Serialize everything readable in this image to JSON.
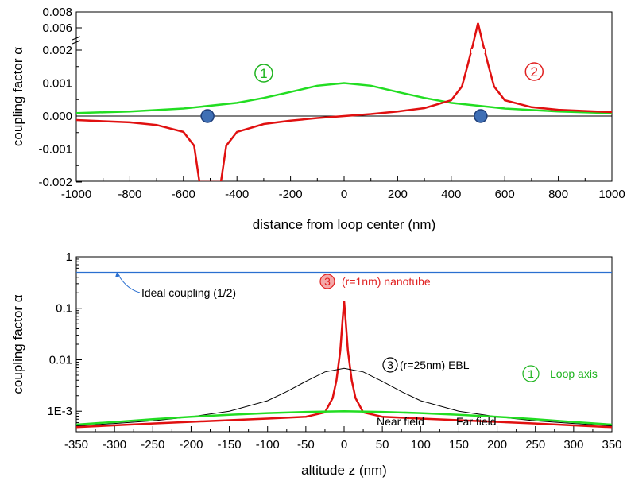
{
  "chart_data": [
    {
      "type": "line",
      "xlabel": "distance from loop center (nm)",
      "ylabel": "coupling factor α",
      "xlim": [
        -1000,
        1000
      ],
      "x_ticks": [
        -1000,
        -800,
        -600,
        -400,
        -200,
        0,
        200,
        400,
        600,
        800,
        1000
      ],
      "y_ticks": [
        "-0.002",
        "-0.001",
        "0.000",
        "0.001",
        "0.002",
        "0.006",
        "0.008"
      ],
      "y_tick_values": [
        -0.002,
        -0.001,
        0.0,
        0.001,
        0.002,
        0.006,
        0.008
      ],
      "grid": false,
      "series": [
        {
          "label": "1",
          "color": "#22dd22",
          "points": [
            [
              -1000,
              9e-05
            ],
            [
              -800,
              0.00014
            ],
            [
              -600,
              0.00023
            ],
            [
              -400,
              0.0004
            ],
            [
              -300,
              0.00055
            ],
            [
              -200,
              0.00073
            ],
            [
              -100,
              0.00092
            ],
            [
              0,
              0.001
            ],
            [
              100,
              0.00092
            ],
            [
              200,
              0.00073
            ],
            [
              300,
              0.00055
            ],
            [
              400,
              0.0004
            ],
            [
              600,
              0.00023
            ],
            [
              800,
              0.00014
            ],
            [
              1000,
              9e-05
            ]
          ]
        },
        {
          "label": "2",
          "color": "#e01010",
          "points": [
            [
              -1000,
              -0.00012
            ],
            [
              -800,
              -0.00019
            ],
            [
              -700,
              -0.00027
            ],
            [
              -600,
              -0.00048
            ],
            [
              -560,
              -0.0009
            ],
            [
              -540,
              -0.002
            ],
            [
              -460,
              -0.002
            ],
            [
              -440,
              -0.0009
            ],
            [
              -400,
              -0.00048
            ],
            [
              -300,
              -0.00024
            ],
            [
              -200,
              -0.00014
            ],
            [
              -100,
              -6e-05
            ],
            [
              0,
              0.0
            ],
            [
              100,
              6e-05
            ],
            [
              200,
              0.00014
            ],
            [
              300,
              0.00024
            ],
            [
              400,
              0.00048
            ],
            [
              440,
              0.0009
            ],
            [
              460,
              0.0015
            ],
            [
              480,
              0.0028
            ],
            [
              500,
              0.0066
            ],
            [
              520,
              0.0028
            ],
            [
              540,
              0.0015
            ],
            [
              560,
              0.0009
            ],
            [
              600,
              0.00048
            ],
            [
              700,
              0.00027
            ],
            [
              800,
              0.00019
            ],
            [
              1000,
              0.00012
            ]
          ]
        }
      ],
      "markers": [
        {
          "x": -510,
          "y": 0.0,
          "color": "#3f6fb5"
        },
        {
          "x": 510,
          "y": 0.0,
          "color": "#3f6fb5"
        }
      ]
    },
    {
      "type": "line",
      "yscale": "log",
      "xlabel": "altitude z (nm)",
      "ylabel": "coupling factor α",
      "xlim": [
        -350,
        350
      ],
      "ylim": [
        0.0004,
        1
      ],
      "x_ticks": [
        -350,
        -300,
        -250,
        -200,
        -150,
        -100,
        -50,
        0,
        50,
        100,
        150,
        200,
        250,
        300,
        350
      ],
      "y_ticks": [
        "1E-3",
        "0.01",
        "0.1",
        "1"
      ],
      "y_tick_values": [
        0.001,
        0.01,
        0.1,
        1
      ],
      "grid": false,
      "series": [
        {
          "color": "#2a6fd0",
          "points": [
            [
              -350,
              0.5
            ],
            [
              350,
              0.5
            ]
          ]
        },
        {
          "color": "#e01010",
          "points": [
            [
              -350,
              0.00049
            ],
            [
              -250,
              0.00058
            ],
            [
              -150,
              0.00067
            ],
            [
              -100,
              0.00072
            ],
            [
              -50,
              0.00078
            ],
            [
              -25,
              0.00095
            ],
            [
              -15,
              0.0018
            ],
            [
              -10,
              0.004
            ],
            [
              -5,
              0.015
            ],
            [
              -2,
              0.06
            ],
            [
              0,
              0.14
            ],
            [
              2,
              0.06
            ],
            [
              5,
              0.015
            ],
            [
              10,
              0.004
            ],
            [
              15,
              0.0018
            ],
            [
              25,
              0.00095
            ],
            [
              50,
              0.00078
            ],
            [
              100,
              0.00072
            ],
            [
              150,
              0.00067
            ],
            [
              250,
              0.00058
            ],
            [
              350,
              0.00049
            ]
          ]
        },
        {
          "color": "#000000",
          "points": [
            [
              -350,
              0.00052
            ],
            [
              -300,
              0.00058
            ],
            [
              -250,
              0.00065
            ],
            [
              -200,
              0.00078
            ],
            [
              -150,
              0.001
            ],
            [
              -100,
              0.0016
            ],
            [
              -75,
              0.0024
            ],
            [
              -50,
              0.0038
            ],
            [
              -25,
              0.0058
            ],
            [
              0,
              0.0068
            ],
            [
              25,
              0.0058
            ],
            [
              50,
              0.0038
            ],
            [
              75,
              0.0024
            ],
            [
              100,
              0.0016
            ],
            [
              150,
              0.001
            ],
            [
              200,
              0.00078
            ],
            [
              250,
              0.00065
            ],
            [
              300,
              0.00058
            ],
            [
              350,
              0.00052
            ]
          ]
        },
        {
          "color": "#22dd22",
          "points": [
            [
              -350,
              0.00055
            ],
            [
              -300,
              0.00062
            ],
            [
              -250,
              0.0007
            ],
            [
              -200,
              0.00078
            ],
            [
              -150,
              0.00085
            ],
            [
              -100,
              0.00092
            ],
            [
              -50,
              0.00097
            ],
            [
              0,
              0.001
            ],
            [
              50,
              0.00097
            ],
            [
              100,
              0.00092
            ],
            [
              150,
              0.00085
            ],
            [
              200,
              0.00078
            ],
            [
              250,
              0.0007
            ],
            [
              300,
              0.00062
            ],
            [
              350,
              0.00055
            ]
          ]
        }
      ],
      "annotations": {
        "ideal": "Ideal coupling (1/2)",
        "nanotube_num": "3",
        "nanotube": "(r=1nm) nanotube",
        "ebl_num": "3",
        "ebl": "(r=25nm) EBL",
        "loop_num": "1",
        "loop": "Loop axis",
        "near": "Near field",
        "far": "Far field"
      }
    }
  ]
}
